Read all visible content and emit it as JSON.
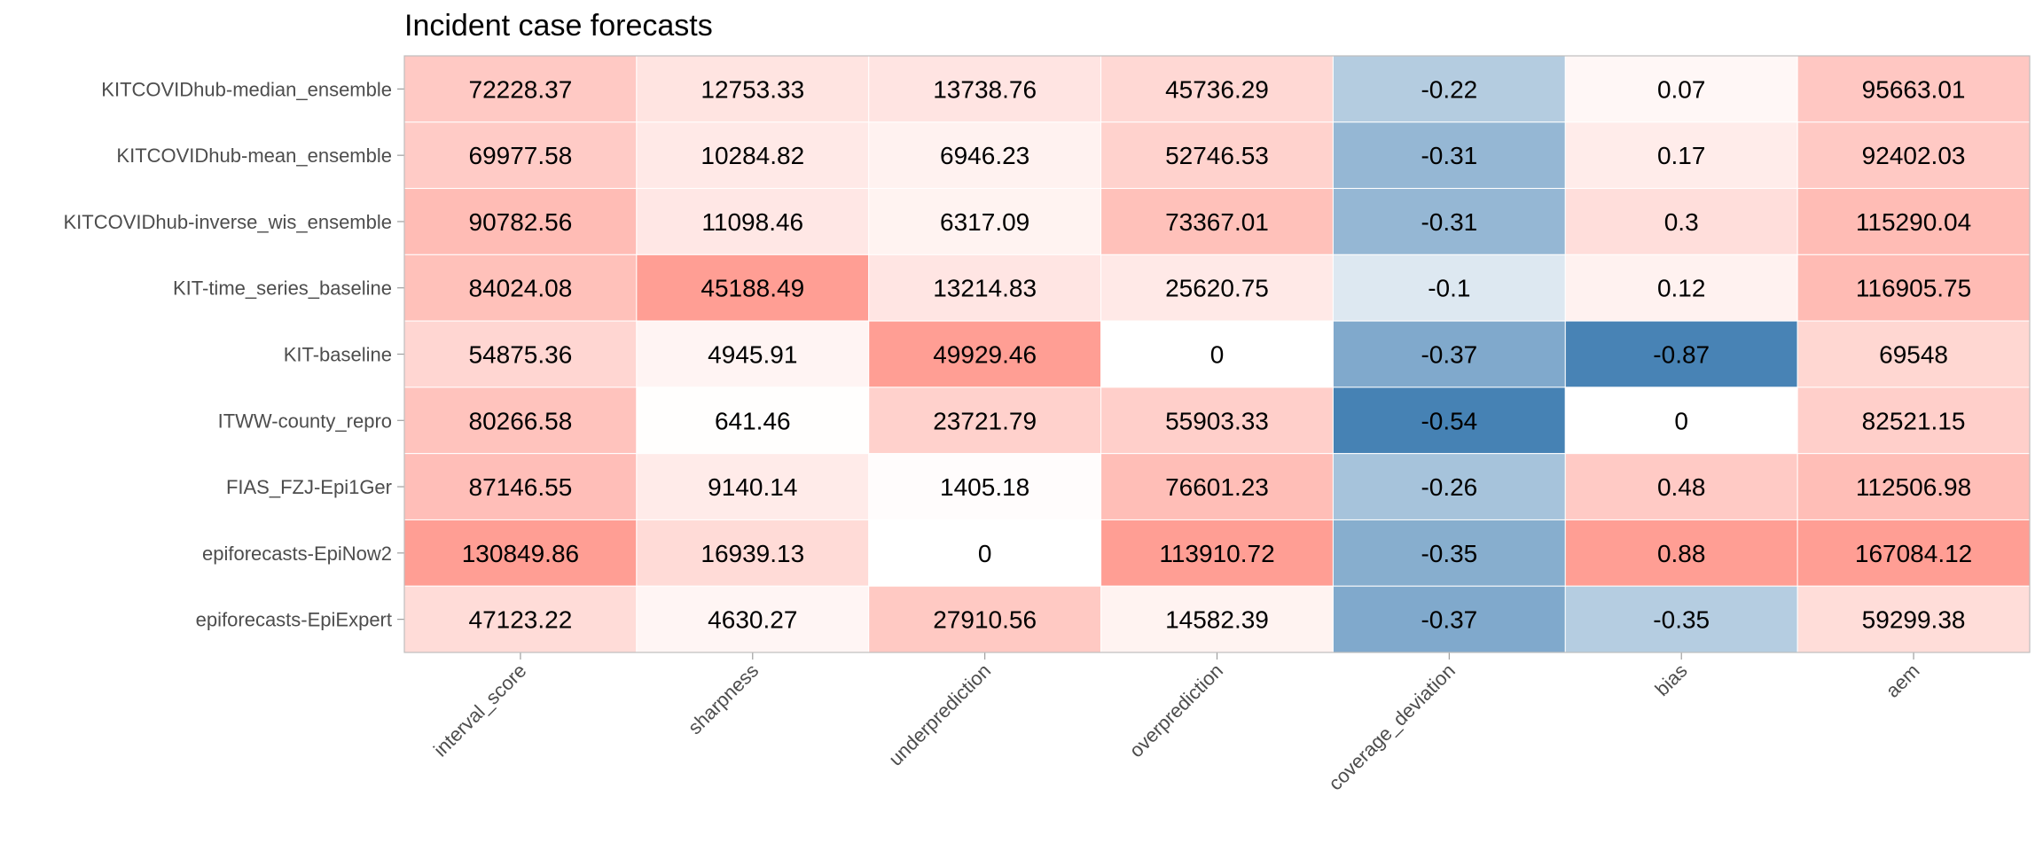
{
  "chart_data": {
    "type": "heatmap",
    "title": "Incident case forecasts",
    "xlabel": "",
    "ylabel": "",
    "columns": [
      "interval_score",
      "sharpness",
      "underprediction",
      "overprediction",
      "coverage_deviation",
      "bias",
      "aem"
    ],
    "rows": [
      "KITCOVIDhub-median_ensemble",
      "KITCOVIDhub-mean_ensemble",
      "KITCOVIDhub-inverse_wis_ensemble",
      "KIT-time_series_baseline",
      "KIT-baseline",
      "ITWW-county_repro",
      "FIAS_FZJ-Epi1Ger",
      "epiforecasts-EpiNow2",
      "epiforecasts-EpiExpert"
    ],
    "values": [
      [
        "72228.37",
        "12753.33",
        "13738.76",
        "45736.29",
        "-0.22",
        "0.07",
        "95663.01"
      ],
      [
        "69977.58",
        "10284.82",
        "6946.23",
        "52746.53",
        "-0.31",
        "0.17",
        "92402.03"
      ],
      [
        "90782.56",
        "11098.46",
        "6317.09",
        "73367.01",
        "-0.31",
        "0.3",
        "115290.04"
      ],
      [
        "84024.08",
        "45188.49",
        "13214.83",
        "25620.75",
        "-0.1",
        "0.12",
        "116905.75"
      ],
      [
        "54875.36",
        "4945.91",
        "49929.46",
        "0",
        "-0.37",
        "-0.87",
        "69548"
      ],
      [
        "80266.58",
        "641.46",
        "23721.79",
        "55903.33",
        "-0.54",
        "0",
        "82521.15"
      ],
      [
        "87146.55",
        "9140.14",
        "1405.18",
        "76601.23",
        "-0.26",
        "0.48",
        "112506.98"
      ],
      [
        "130849.86",
        "16939.13",
        "0",
        "113910.72",
        "-0.35",
        "0.88",
        "167084.12"
      ],
      [
        "47123.22",
        "4630.27",
        "27910.56",
        "14582.39",
        "-0.37",
        "-0.35",
        "59299.38"
      ]
    ],
    "colors": {
      "positive": "#ff9e94",
      "negative": "#4682b4",
      "zero": "#ffffff"
    },
    "grid": false,
    "legend": "none"
  }
}
